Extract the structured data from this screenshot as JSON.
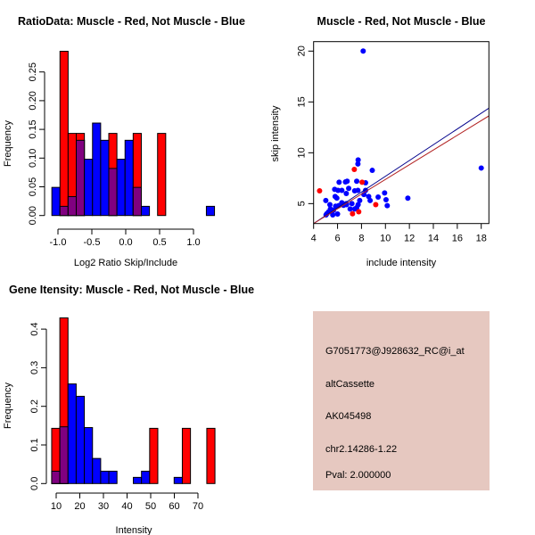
{
  "colors": {
    "red": "#FF0000",
    "blue": "#0000FF",
    "overlap": "#800080",
    "panel": "#E6C8C0",
    "pval": "#A00000",
    "fit_blue": "#00008B",
    "fit_red": "#B22222"
  },
  "chart_data": [
    {
      "type": "bar",
      "title": "RatioData: Muscle - Red, Not Muscle - Blue",
      "xlabel": "Log2 Ratio Skip/Include",
      "ylabel": "Frequency",
      "bin_start": -1.09,
      "bin_width": 0.12,
      "xticks": [
        "-1.0",
        "-0.5",
        "0.0",
        "0.5",
        "1.0"
      ],
      "xtick_values": [
        -1,
        -0.5,
        0,
        0.5,
        1
      ],
      "yticks": [
        "0.00",
        "0.05",
        "0.10",
        "0.15",
        "0.20",
        "0.25"
      ],
      "ytick_values": [
        0,
        0.05,
        0.1,
        0.15,
        0.2,
        0.25
      ],
      "series": [
        {
          "name": "Muscle",
          "color": "red",
          "values": [
            0,
            0.286,
            0.143,
            0.143,
            0,
            0,
            0,
            0.143,
            0,
            0,
            0.143,
            0,
            0,
            0.143,
            0,
            0,
            0,
            0,
            0,
            0
          ]
        },
        {
          "name": "Not Muscle",
          "color": "blue",
          "values": [
            0.049,
            0.016,
            0.033,
            0.131,
            0.098,
            0.161,
            0.131,
            0.082,
            0.098,
            0.131,
            0.049,
            0.016,
            0,
            0,
            0,
            0,
            0,
            0,
            0,
            0.016
          ]
        }
      ]
    },
    {
      "type": "scatter",
      "title": "Muscle - Red, Not Muscle - Blue",
      "xlabel": "include intensity",
      "ylabel": "skip intensity",
      "xlim": [
        4,
        18.64
      ],
      "ylim": [
        3.04,
        20.93
      ],
      "xticks": [
        "4",
        "6",
        "8",
        "10",
        "12",
        "14",
        "16",
        "18"
      ],
      "xtick_values": [
        4,
        6,
        8,
        10,
        12,
        14,
        16,
        18
      ],
      "yticks": [
        "5",
        "10",
        "15",
        "20"
      ],
      "ytick_values": [
        5,
        10,
        15,
        20
      ],
      "series": [
        {
          "name": "Not Muscle",
          "color": "blue",
          "points": [
            [
              8.14,
              20.0
            ],
            [
              18.0,
              8.5
            ],
            [
              11.87,
              5.53
            ],
            [
              7.7,
              8.9
            ],
            [
              7.72,
              9.3
            ],
            [
              8.9,
              8.27
            ],
            [
              7.6,
              7.2
            ],
            [
              8.34,
              7.05
            ],
            [
              6.13,
              7.1
            ],
            [
              6.66,
              7.13
            ],
            [
              6.8,
              7.2
            ],
            [
              6.93,
              6.5
            ],
            [
              5.76,
              6.4
            ],
            [
              6.04,
              6.3
            ],
            [
              6.36,
              6.3
            ],
            [
              6.73,
              6.0
            ],
            [
              7.43,
              6.26
            ],
            [
              7.7,
              6.3
            ],
            [
              5.8,
              5.7
            ],
            [
              5.94,
              5.55
            ],
            [
              5.02,
              5.3
            ],
            [
              9.93,
              6.05
            ],
            [
              9.39,
              5.64
            ],
            [
              10.05,
              5.38
            ],
            [
              10.15,
              4.8
            ],
            [
              8.6,
              5.7
            ],
            [
              8.72,
              5.3
            ],
            [
              8.34,
              6.3
            ],
            [
              8.2,
              5.9
            ],
            [
              6.36,
              5.09
            ],
            [
              6.73,
              5.0
            ],
            [
              7.2,
              5.0
            ],
            [
              7.85,
              5.3
            ],
            [
              7.05,
              4.47
            ],
            [
              7.43,
              4.47
            ],
            [
              7.6,
              4.6
            ],
            [
              7.72,
              4.9
            ],
            [
              5.36,
              4.9
            ],
            [
              5.84,
              4.75
            ],
            [
              6.1,
              4.8
            ],
            [
              6.5,
              4.83
            ],
            [
              6.75,
              4.9
            ],
            [
              5.4,
              4.47
            ],
            [
              5.66,
              4.35
            ],
            [
              5.24,
              4.18
            ],
            [
              5.04,
              3.89
            ],
            [
              5.6,
              3.89
            ],
            [
              6.0,
              3.98
            ],
            [
              5.5,
              4.2
            ],
            [
              5.1,
              4.0
            ]
          ]
        },
        {
          "name": "Muscle",
          "color": "red",
          "points": [
            [
              4.5,
              6.26
            ],
            [
              7.4,
              8.36
            ],
            [
              8.05,
              7.1
            ],
            [
              9.19,
              4.9
            ],
            [
              7.25,
              4.0
            ],
            [
              7.77,
              4.2
            ]
          ]
        }
      ],
      "fit_lines": [
        {
          "name": "Not Muscle fit",
          "color": "fit_blue",
          "slope": 0.775,
          "intercept": -0.06
        },
        {
          "name": "Muscle fit",
          "color": "fit_red",
          "slope": 0.723,
          "intercept": 0.15
        }
      ]
    },
    {
      "type": "bar",
      "title": "Gene Itensity: Muscle - Red, Not Muscle - Blue",
      "xlabel": "Intensity",
      "ylabel": "Frequency",
      "bin_start": 8.1,
      "bin_width": 3.455,
      "xticks": [
        "10",
        "20",
        "30",
        "40",
        "50",
        "60",
        "70"
      ],
      "xtick_values": [
        10,
        20,
        30,
        40,
        50,
        60,
        70
      ],
      "yticks": [
        "0.0",
        "0.1",
        "0.2",
        "0.3",
        "0.4"
      ],
      "ytick_values": [
        0,
        0.1,
        0.2,
        0.3,
        0.4
      ],
      "series": [
        {
          "name": "Muscle",
          "color": "red",
          "values": [
            0.143,
            0.429,
            0,
            0,
            0,
            0,
            0,
            0,
            0,
            0,
            0,
            0,
            0.143,
            0,
            0,
            0,
            0.143,
            0,
            0,
            0.143
          ]
        },
        {
          "name": "Not Muscle",
          "color": "blue",
          "values": [
            0.032,
            0.147,
            0.258,
            0.226,
            0.145,
            0.065,
            0.032,
            0.032,
            0,
            0,
            0.016,
            0.032,
            0,
            0,
            0,
            0.016,
            0,
            0,
            0,
            0
          ]
        }
      ]
    }
  ],
  "info_panel": {
    "probe": "G7051773@J928632_RC@i_at",
    "event_type": "altCassette",
    "accession": "AK045498",
    "location": "chr2.14286-1.22",
    "pval": "Pval: 2.000000"
  }
}
